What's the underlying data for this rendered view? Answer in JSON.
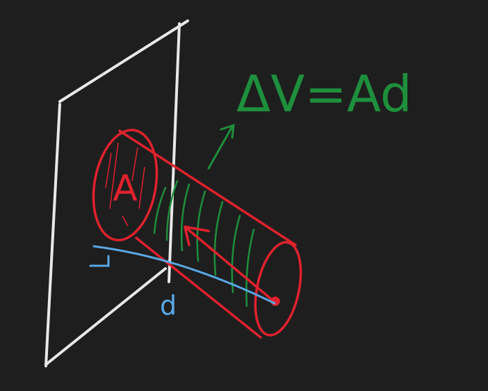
{
  "equation": "ΔV=Ad",
  "labels": {
    "area": "A",
    "distance": "d"
  }
}
